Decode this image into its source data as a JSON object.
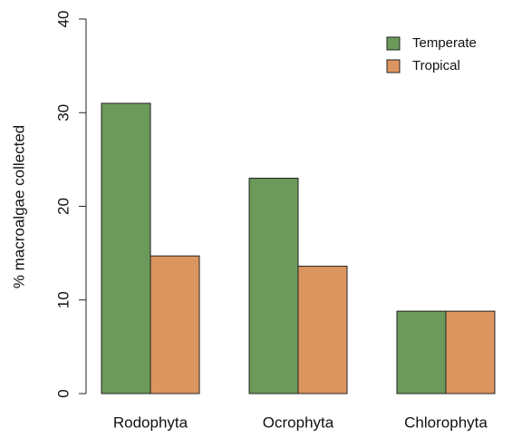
{
  "chart_data": {
    "type": "bar",
    "ylabel": "% macroalgae collected",
    "categories": [
      "Rodophyta",
      "Ocrophyta",
      "Chlorophyta"
    ],
    "series": [
      {
        "name": "Temperate",
        "color": "#6b9a5b",
        "values": [
          31,
          23,
          8.8
        ]
      },
      {
        "name": "Tropical",
        "color": "#dd9560",
        "values": [
          14.7,
          13.6,
          8.8
        ]
      }
    ],
    "ylim": [
      0,
      40
    ],
    "yticks": [
      0,
      10,
      20,
      30,
      40
    ],
    "grid": false,
    "legend": "topright"
  }
}
